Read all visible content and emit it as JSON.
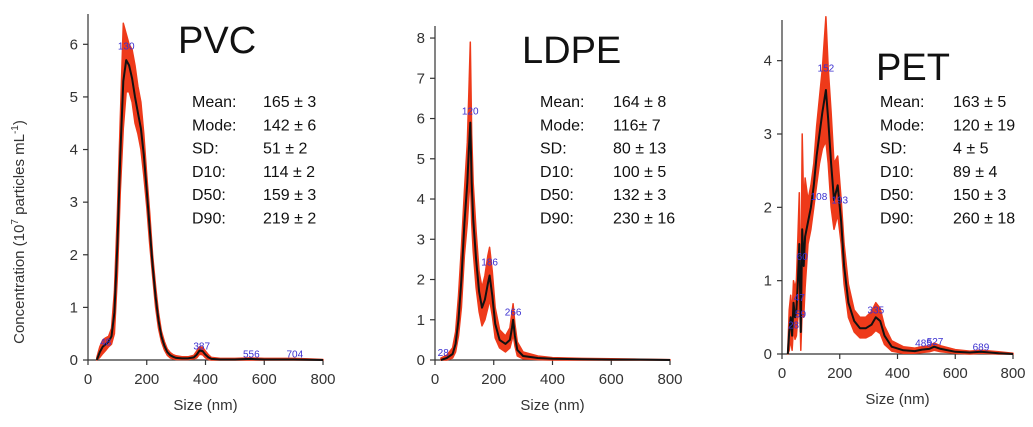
{
  "chart_data": [
    {
      "type": "line",
      "title": "PVC",
      "xlabel": "Size (nm)",
      "ylabel_main": "Concentration (10",
      "ylabel_sup": "7",
      "ylabel_rest": " particles mL",
      "ylabel_sup2": "-1",
      "ylabel_end": ")",
      "xlim": [
        0,
        800
      ],
      "ylim": [
        0,
        6.5
      ],
      "xticks": [
        "0",
        "200",
        "400",
        "600",
        "800"
      ],
      "yticks": [
        "0",
        "1",
        "2",
        "3",
        "4",
        "5",
        "6"
      ],
      "series": [
        {
          "x": [
            30,
            40,
            50,
            60,
            70,
            80,
            90,
            100,
            110,
            120,
            130,
            140,
            150,
            160,
            170,
            180,
            190,
            200,
            210,
            220,
            230,
            240,
            250,
            260,
            270,
            280,
            290,
            300,
            320,
            340,
            360,
            370,
            380,
            390,
            400,
            410,
            420,
            450,
            500,
            550,
            600,
            650,
            700,
            750,
            800
          ],
          "y": [
            0,
            0.15,
            0.25,
            0.3,
            0.35,
            0.45,
            0.9,
            2.2,
            3.9,
            5.3,
            5.7,
            5.6,
            5.35,
            5.0,
            4.7,
            4.4,
            3.9,
            3.2,
            2.5,
            1.8,
            1.2,
            0.75,
            0.45,
            0.27,
            0.15,
            0.09,
            0.06,
            0.04,
            0.03,
            0.03,
            0.05,
            0.1,
            0.18,
            0.17,
            0.1,
            0.05,
            0.02,
            0.01,
            0.01,
            0.02,
            0.01,
            0.01,
            0.01,
            0.005,
            0
          ],
          "band_upper": [
            0.05,
            0.25,
            0.38,
            0.42,
            0.45,
            0.6,
            1.3,
            2.8,
            4.6,
            6.4,
            6.2,
            6.0,
            5.9,
            5.6,
            5.2,
            4.9,
            4.3,
            3.5,
            2.8,
            2.0,
            1.4,
            0.9,
            0.55,
            0.35,
            0.21,
            0.14,
            0.1,
            0.08,
            0.06,
            0.06,
            0.09,
            0.17,
            0.25,
            0.24,
            0.17,
            0.1,
            0.05,
            0.03,
            0.03,
            0.04,
            0.03,
            0.03,
            0.03,
            0.02,
            0.01
          ],
          "band_lower": [
            0,
            0.05,
            0.12,
            0.18,
            0.25,
            0.3,
            0.5,
            1.6,
            3.2,
            4.4,
            5.1,
            5.1,
            4.9,
            4.5,
            4.3,
            4.0,
            3.5,
            2.9,
            2.2,
            1.6,
            1.0,
            0.6,
            0.35,
            0.19,
            0.09,
            0.04,
            0.02,
            0.01,
            0.01,
            0.01,
            0.02,
            0.04,
            0.11,
            0.1,
            0.04,
            0.01,
            0,
            0,
            0,
            0,
            0,
            0,
            0,
            0,
            0
          ]
        }
      ],
      "peak_labels": [
        {
          "x": 60,
          "y": 0.28,
          "label": "48"
        },
        {
          "x": 130,
          "y": 5.9,
          "label": "130"
        },
        {
          "x": 387,
          "y": 0.2,
          "label": "387"
        },
        {
          "x": 556,
          "y": 0.05,
          "label": "556"
        },
        {
          "x": 704,
          "y": 0.05,
          "label": "704"
        }
      ],
      "stats": [
        {
          "name": "Mean:",
          "value": "165 ± 3"
        },
        {
          "name": "Mode:",
          "value": "142 ± 6"
        },
        {
          "name": "SD:",
          "value": "51 ± 2"
        },
        {
          "name": "D10:",
          "value": "114 ± 2"
        },
        {
          "name": "D50:",
          "value": "159 ± 3"
        },
        {
          "name": "D90:",
          "value": "219 ± 2"
        }
      ]
    },
    {
      "type": "line",
      "title": "LDPE",
      "xlabel": "Size (nm)",
      "xlim": [
        0,
        800
      ],
      "ylim": [
        0,
        8.2
      ],
      "xticks": [
        "0",
        "200",
        "400",
        "600",
        "800"
      ],
      "yticks": [
        "0",
        "1",
        "2",
        "3",
        "4",
        "5",
        "6",
        "7",
        "8"
      ],
      "series": [
        {
          "x": [
            20,
            40,
            60,
            70,
            80,
            90,
            100,
            110,
            115,
            120,
            125,
            130,
            140,
            150,
            160,
            170,
            180,
            186,
            195,
            205,
            220,
            240,
            255,
            262,
            266,
            272,
            280,
            300,
            350,
            400,
            500,
            600,
            700,
            800
          ],
          "y": [
            0,
            0.05,
            0.15,
            0.4,
            1.0,
            2.0,
            3.4,
            4.4,
            5.2,
            5.9,
            4.4,
            3.5,
            2.5,
            1.7,
            1.3,
            1.5,
            1.9,
            2.1,
            1.6,
            0.9,
            0.5,
            0.4,
            0.5,
            0.8,
            1.0,
            0.6,
            0.25,
            0.1,
            0.05,
            0.03,
            0.02,
            0.01,
            0.01,
            0
          ],
          "band_upper": [
            0.05,
            0.12,
            0.3,
            0.7,
            1.6,
            2.8,
            4.2,
            5.4,
            6.6,
            7.9,
            5.6,
            4.4,
            3.2,
            2.2,
            1.8,
            2.1,
            2.6,
            2.8,
            2.2,
            1.3,
            0.75,
            0.6,
            0.8,
            1.2,
            1.4,
            0.9,
            0.45,
            0.2,
            0.1,
            0.06,
            0.04,
            0.03,
            0.02,
            0.01
          ],
          "band_lower": [
            0,
            0,
            0.05,
            0.2,
            0.6,
            1.3,
            2.6,
            3.4,
            4.0,
            4.6,
            3.4,
            2.7,
            1.8,
            1.2,
            0.85,
            1.0,
            1.3,
            1.5,
            1.1,
            0.55,
            0.3,
            0.2,
            0.3,
            0.5,
            0.65,
            0.35,
            0.1,
            0.03,
            0.01,
            0,
            0,
            0,
            0,
            0
          ]
        }
      ],
      "peak_labels": [
        {
          "x": 28,
          "y": 0.1,
          "label": "28"
        },
        {
          "x": 120,
          "y": 6.1,
          "label": "120"
        },
        {
          "x": 186,
          "y": 2.35,
          "label": "186"
        },
        {
          "x": 266,
          "y": 1.1,
          "label": "266"
        }
      ],
      "stats": [
        {
          "name": "Mean:",
          "value": "164 ± 8"
        },
        {
          "name": "Mode:",
          "value": "116± 7"
        },
        {
          "name": "SD:",
          "value": "80 ± 13"
        },
        {
          "name": "D10:",
          "value": "100 ± 5"
        },
        {
          "name": "D50:",
          "value": "132 ± 3"
        },
        {
          "name": "D90:",
          "value": "230 ± 16"
        }
      ]
    },
    {
      "type": "line",
      "title": "PET",
      "xlabel": "Size (nm)",
      "xlim": [
        0,
        800
      ],
      "ylim": [
        0,
        4.5
      ],
      "xticks": [
        "0",
        "200",
        "400",
        "600",
        "800"
      ],
      "yticks": [
        "0",
        "1",
        "2",
        "3",
        "4"
      ],
      "series": [
        {
          "x": [
            20,
            25,
            30,
            35,
            40,
            45,
            50,
            55,
            60,
            65,
            70,
            75,
            80,
            90,
            100,
            110,
            120,
            130,
            140,
            152,
            160,
            170,
            180,
            193,
            205,
            215,
            230,
            250,
            270,
            290,
            310,
            325,
            340,
            355,
            380,
            420,
            460,
            485,
            510,
            527,
            550,
            600,
            650,
            689,
            750,
            800
          ],
          "y": [
            0,
            0.3,
            0.5,
            0.25,
            0.7,
            0.5,
            0.6,
            1.0,
            1.5,
            0.3,
            1.7,
            1.2,
            1.6,
            1.8,
            2.0,
            2.3,
            2.7,
            3.0,
            3.3,
            3.6,
            3.2,
            2.6,
            2.1,
            2.3,
            1.8,
            1.2,
            0.7,
            0.45,
            0.35,
            0.35,
            0.4,
            0.5,
            0.45,
            0.25,
            0.1,
            0.05,
            0.04,
            0.06,
            0.07,
            0.1,
            0.07,
            0.03,
            0.02,
            0.03,
            0.01,
            0
          ],
          "band_upper": [
            0.05,
            0.6,
            0.8,
            0.55,
            1.0,
            0.9,
            1.0,
            1.6,
            2.2,
            0.7,
            3.0,
            2.0,
            2.4,
            2.1,
            2.3,
            2.6,
            3.1,
            3.5,
            3.9,
            4.6,
            3.9,
            3.3,
            2.6,
            2.7,
            2.1,
            1.5,
            0.95,
            0.6,
            0.5,
            0.5,
            0.58,
            0.7,
            0.62,
            0.38,
            0.18,
            0.1,
            0.08,
            0.1,
            0.11,
            0.15,
            0.11,
            0.06,
            0.04,
            0.05,
            0.03,
            0.01
          ],
          "band_lower": [
            0,
            0.05,
            0.2,
            0.05,
            0.35,
            0.2,
            0.25,
            0.5,
            0.9,
            0.05,
            0.6,
            0.5,
            0.9,
            1.5,
            1.7,
            2.0,
            2.3,
            2.6,
            2.8,
            2.9,
            2.6,
            2.0,
            1.7,
            1.9,
            1.5,
            0.95,
            0.5,
            0.3,
            0.22,
            0.22,
            0.26,
            0.32,
            0.28,
            0.13,
            0.04,
            0.01,
            0.01,
            0.02,
            0.03,
            0.05,
            0.03,
            0.01,
            0,
            0.01,
            0,
            0
          ]
        }
      ],
      "peak_labels": [
        {
          "x": 40,
          "y": 0.35,
          "label": "28"
        },
        {
          "x": 64,
          "y": 0.5,
          "label": "59"
        },
        {
          "x": 60,
          "y": 0.72,
          "label": "47"
        },
        {
          "x": 70,
          "y": 1.28,
          "label": "60"
        },
        {
          "x": 152,
          "y": 3.85,
          "label": "152"
        },
        {
          "x": 128,
          "y": 2.1,
          "label": "108"
        },
        {
          "x": 200,
          "y": 2.05,
          "label": "193"
        },
        {
          "x": 325,
          "y": 0.55,
          "label": "335"
        },
        {
          "x": 490,
          "y": 0.1,
          "label": "485"
        },
        {
          "x": 530,
          "y": 0.12,
          "label": "527"
        },
        {
          "x": 689,
          "y": 0.05,
          "label": "689"
        }
      ],
      "stats": [
        {
          "name": "Mean:",
          "value": "163 ± 5"
        },
        {
          "name": "Mode:",
          "value": "120 ± 19"
        },
        {
          "name": "SD:",
          "value": "4 ± 5"
        },
        {
          "name": "D10:",
          "value": "89 ± 4"
        },
        {
          "name": "D50:",
          "value": "150 ± 3"
        },
        {
          "name": "D90:",
          "value": "260 ± 18"
        }
      ]
    }
  ],
  "colors": {
    "band": "#ee3a1a",
    "line": "#111111",
    "peak_label": "#3a2fd0"
  }
}
